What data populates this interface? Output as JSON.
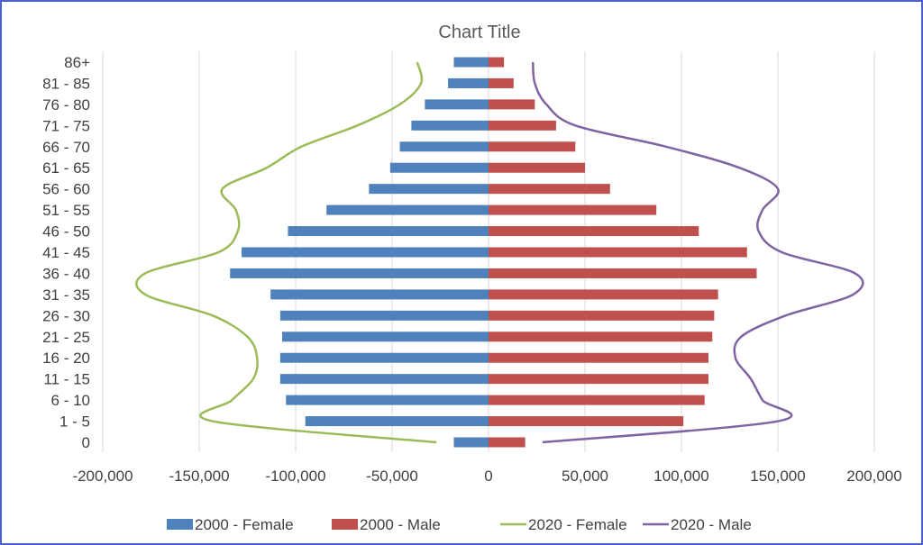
{
  "chart_data": {
    "type": "bar",
    "orientation": "horizontal",
    "title": "Chart Title",
    "categories": [
      "0",
      "1 - 5",
      "6 - 10",
      "11 - 15",
      "16 - 20",
      "21 - 25",
      "26 - 30",
      "31 - 35",
      "36 - 40",
      "41 - 45",
      "46 - 50",
      "51 - 55",
      "56 - 60",
      "61 - 65",
      "66 - 70",
      "71 - 75",
      "76 - 80",
      "81 - 85",
      "86+"
    ],
    "xlim": [
      -200000,
      200000
    ],
    "x_ticks": [
      -200000,
      -150000,
      -100000,
      -50000,
      0,
      50000,
      100000,
      150000,
      200000
    ],
    "x_tick_labels": [
      "-200,000",
      "-150,000",
      "-100,000",
      "-50,000",
      "0",
      "50,000",
      "100,000",
      "150,000",
      "200,000"
    ],
    "grid": "vertical",
    "legend_position": "bottom",
    "series": [
      {
        "name": "2000 - Female",
        "kind": "bar",
        "color": "#4f81bd",
        "values": [
          -18000,
          -95000,
          -105000,
          -108000,
          -108000,
          -107000,
          -108000,
          -113000,
          -134000,
          -128000,
          -104000,
          -84000,
          -62000,
          -51000,
          -46000,
          -40000,
          -33000,
          -21000,
          -18000
        ]
      },
      {
        "name": "2000 - Male",
        "kind": "bar",
        "color": "#c0504d",
        "values": [
          19000,
          101000,
          112000,
          114000,
          114000,
          116000,
          117000,
          119000,
          139000,
          134000,
          109000,
          87000,
          63000,
          50000,
          45000,
          35000,
          24000,
          13000,
          8000
        ]
      },
      {
        "name": "2020 - Female",
        "kind": "line",
        "color": "#9bbb59",
        "values": [
          -27000,
          -143000,
          -133000,
          -122000,
          -120000,
          -125000,
          -143000,
          -178000,
          -178000,
          -140000,
          -130000,
          -131000,
          -138000,
          -115000,
          -97000,
          -68000,
          -46000,
          -35000,
          -37000
        ]
      },
      {
        "name": "2020 - Male",
        "kind": "line",
        "color": "#8064a2",
        "values": [
          28000,
          150000,
          142000,
          136000,
          128000,
          131000,
          154000,
          189000,
          190000,
          152000,
          140000,
          142000,
          150000,
          130000,
          92000,
          45000,
          30000,
          24000,
          23000
        ]
      }
    ]
  }
}
